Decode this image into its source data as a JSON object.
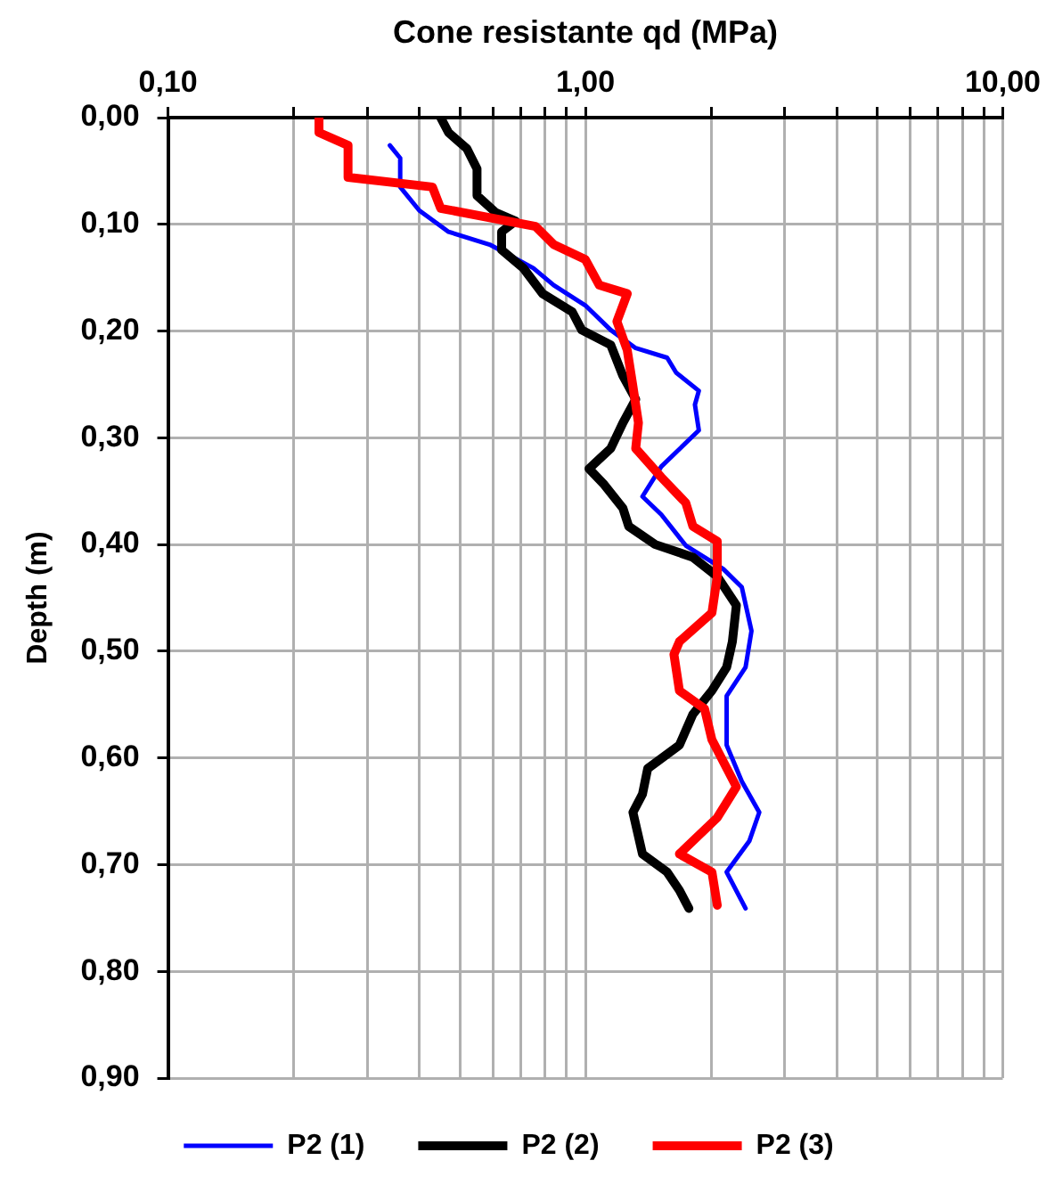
{
  "chart_data": {
    "type": "line",
    "xlabel": "Cone resistante qd (MPa)",
    "ylabel": "Depth (m)",
    "log": "x",
    "xlim": [
      0.1,
      10
    ],
    "xticks": [
      {
        "value": 0.1,
        "label": "0,10"
      },
      {
        "value": 0.2,
        "label": null
      },
      {
        "value": 0.3,
        "label": null
      },
      {
        "value": 0.4,
        "label": null
      },
      {
        "value": 0.5,
        "label": null
      },
      {
        "value": 0.6,
        "label": null
      },
      {
        "value": 0.7,
        "label": null
      },
      {
        "value": 0.8,
        "label": null
      },
      {
        "value": 0.9,
        "label": null
      },
      {
        "value": 1,
        "label": "1,00"
      },
      {
        "value": 2,
        "label": null
      },
      {
        "value": 3,
        "label": null
      },
      {
        "value": 4,
        "label": null
      },
      {
        "value": 5,
        "label": null
      },
      {
        "value": 6,
        "label": null
      },
      {
        "value": 7,
        "label": null
      },
      {
        "value": 8,
        "label": null
      },
      {
        "value": 9,
        "label": null
      },
      {
        "value": 10,
        "label": "10,00"
      }
    ],
    "ylim": [
      0.9,
      0
    ],
    "yticks": [
      {
        "value": 0,
        "label": "0,00"
      },
      {
        "value": 0.1,
        "label": "0,10"
      },
      {
        "value": 0.2,
        "label": "0,20"
      },
      {
        "value": 0.3,
        "label": "0,30"
      },
      {
        "value": 0.4,
        "label": "0,40"
      },
      {
        "value": 0.5,
        "label": "0,50"
      },
      {
        "value": 0.6,
        "label": "0,60"
      },
      {
        "value": 0.7,
        "label": "0,70"
      },
      {
        "value": 0.8,
        "label": "0,80"
      },
      {
        "value": 0.9,
        "label": "0,90"
      }
    ],
    "grid": true,
    "legend": "bottom",
    "marker": "none",
    "line_style": "solid",
    "series": [
      {
        "name": "P2 (1)",
        "color": "#0000ff",
        "x": [
          0.34,
          0.36,
          0.36,
          0.4,
          0.47,
          0.59,
          0.75,
          0.84,
          1.0,
          1.15,
          1.32,
          1.57,
          1.65,
          1.87,
          1.83,
          1.87,
          1.52,
          1.37,
          1.52,
          1.74,
          2.14,
          2.37,
          2.5,
          2.42,
          2.18,
          2.18,
          2.37,
          2.61,
          2.47,
          2.18,
          2.42
        ],
        "values": [
          0.026,
          0.038,
          0.065,
          0.087,
          0.107,
          0.119,
          0.141,
          0.157,
          0.176,
          0.199,
          0.216,
          0.225,
          0.239,
          0.256,
          0.269,
          0.293,
          0.327,
          0.355,
          0.372,
          0.401,
          0.423,
          0.44,
          0.481,
          0.515,
          0.542,
          0.588,
          0.622,
          0.651,
          0.678,
          0.707,
          0.741
        ]
      },
      {
        "name": "P2 (2)",
        "color": "#000000",
        "x": [
          0.45,
          0.47,
          0.52,
          0.55,
          0.55,
          0.61,
          0.68,
          0.63,
          0.63,
          0.71,
          0.79,
          0.93,
          0.98,
          1.15,
          1.23,
          1.32,
          1.23,
          1.15,
          1.02,
          1.11,
          1.23,
          1.27,
          1.47,
          1.81,
          2.07,
          2.3,
          2.25,
          2.18,
          2.01,
          1.81,
          1.68,
          1.41,
          1.37,
          1.3,
          1.37,
          1.57,
          1.68,
          1.77
        ],
        "values": [
          0.0,
          0.014,
          0.029,
          0.048,
          0.073,
          0.089,
          0.097,
          0.107,
          0.124,
          0.141,
          0.165,
          0.182,
          0.199,
          0.213,
          0.242,
          0.264,
          0.286,
          0.31,
          0.329,
          0.344,
          0.366,
          0.383,
          0.4,
          0.412,
          0.43,
          0.457,
          0.491,
          0.515,
          0.537,
          0.559,
          0.588,
          0.61,
          0.634,
          0.651,
          0.69,
          0.707,
          0.724,
          0.741
        ]
      },
      {
        "name": "P2 (3)",
        "color": "#ff0000",
        "x": [
          0.23,
          0.23,
          0.27,
          0.27,
          0.43,
          0.45,
          0.76,
          0.84,
          1.0,
          1.08,
          1.26,
          1.19,
          1.26,
          1.3,
          1.34,
          1.32,
          1.52,
          1.74,
          1.81,
          2.07,
          2.07,
          2.01,
          1.68,
          1.63,
          1.68,
          1.93,
          2.01,
          2.3,
          2.07,
          1.68,
          2.01,
          2.07
        ],
        "values": [
          0.0,
          0.014,
          0.026,
          0.056,
          0.065,
          0.085,
          0.102,
          0.119,
          0.133,
          0.157,
          0.165,
          0.191,
          0.218,
          0.252,
          0.286,
          0.31,
          0.337,
          0.361,
          0.383,
          0.397,
          0.43,
          0.464,
          0.491,
          0.503,
          0.537,
          0.554,
          0.583,
          0.627,
          0.656,
          0.69,
          0.707,
          0.738
        ]
      }
    ]
  }
}
